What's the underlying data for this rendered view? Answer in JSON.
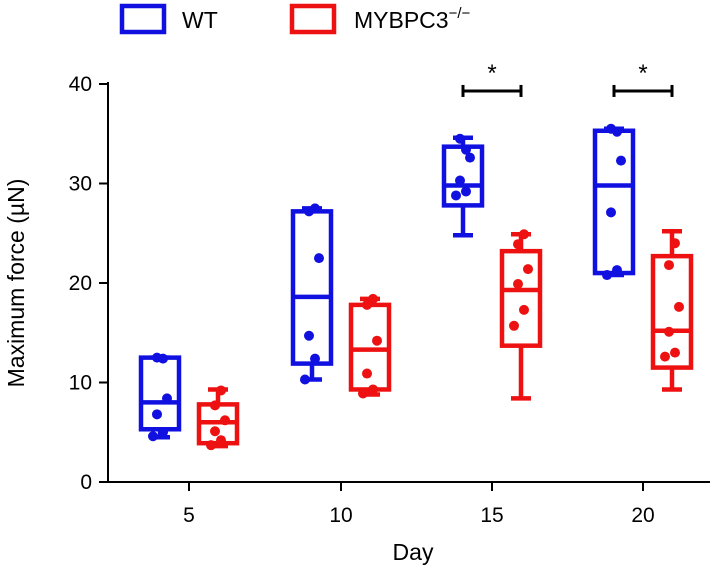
{
  "chart_data": {
    "type": "box",
    "xlabel": "Day",
    "ylabel": "Maximum force (µN)",
    "ylim": [
      0,
      40
    ],
    "yticks": [
      0,
      10,
      20,
      30,
      40
    ],
    "categories": [
      "5",
      "10",
      "15",
      "20"
    ],
    "grid": false,
    "legend_position": "top",
    "series": [
      {
        "name": "WT",
        "legend_text": "WT",
        "color": "#1010e0",
        "boxes": [
          {
            "min": 4.5,
            "q1": 5.3,
            "median": 8.0,
            "q3": 12.5,
            "max": 12.5,
            "points": [
              4.6,
              5.0,
              6.8,
              8.4,
              12.5,
              12.4
            ]
          },
          {
            "min": 10.3,
            "q1": 11.9,
            "median": 18.6,
            "q3": 27.2,
            "max": 27.5,
            "points": [
              10.3,
              12.4,
              14.7,
              22.5,
              27.2,
              27.5
            ]
          },
          {
            "min": 24.8,
            "q1": 27.8,
            "median": 29.8,
            "q3": 33.7,
            "max": 34.6,
            "points": [
              28.8,
              29.2,
              30.3,
              32.6,
              34.5,
              33.4
            ]
          },
          {
            "min": 20.8,
            "q1": 21.0,
            "median": 29.8,
            "q3": 35.3,
            "max": 35.5,
            "points": [
              20.8,
              21.3,
              27.1,
              32.3,
              35.5,
              35.2
            ]
          }
        ]
      },
      {
        "name": "MYBPC3⁻/⁻",
        "legend_text": "MYBPC3",
        "legend_sup": "−/−",
        "color": "#ee1111",
        "boxes": [
          {
            "min": 3.6,
            "q1": 3.9,
            "median": 6.0,
            "q3": 7.8,
            "max": 9.3,
            "points": [
              3.7,
              4.2,
              5.1,
              6.2,
              7.7,
              9.2
            ]
          },
          {
            "min": 8.8,
            "q1": 9.3,
            "median": 13.3,
            "q3": 17.8,
            "max": 18.4,
            "points": [
              8.9,
              9.3,
              10.9,
              14.2,
              17.8,
              18.4
            ]
          },
          {
            "min": 8.4,
            "q1": 13.7,
            "median": 19.3,
            "q3": 23.2,
            "max": 24.9,
            "points": [
              15.7,
              17.3,
              19.9,
              21.4,
              23.9,
              24.9
            ]
          },
          {
            "min": 9.3,
            "q1": 11.5,
            "median": 15.2,
            "q3": 22.7,
            "max": 25.2,
            "points": [
              12.6,
              13.0,
              15.1,
              17.6,
              21.8,
              24.0
            ]
          }
        ]
      }
    ],
    "significance": [
      {
        "category": "15",
        "label": "*",
        "y": 39.3
      },
      {
        "category": "20",
        "label": "*",
        "y": 39.3
      }
    ]
  }
}
